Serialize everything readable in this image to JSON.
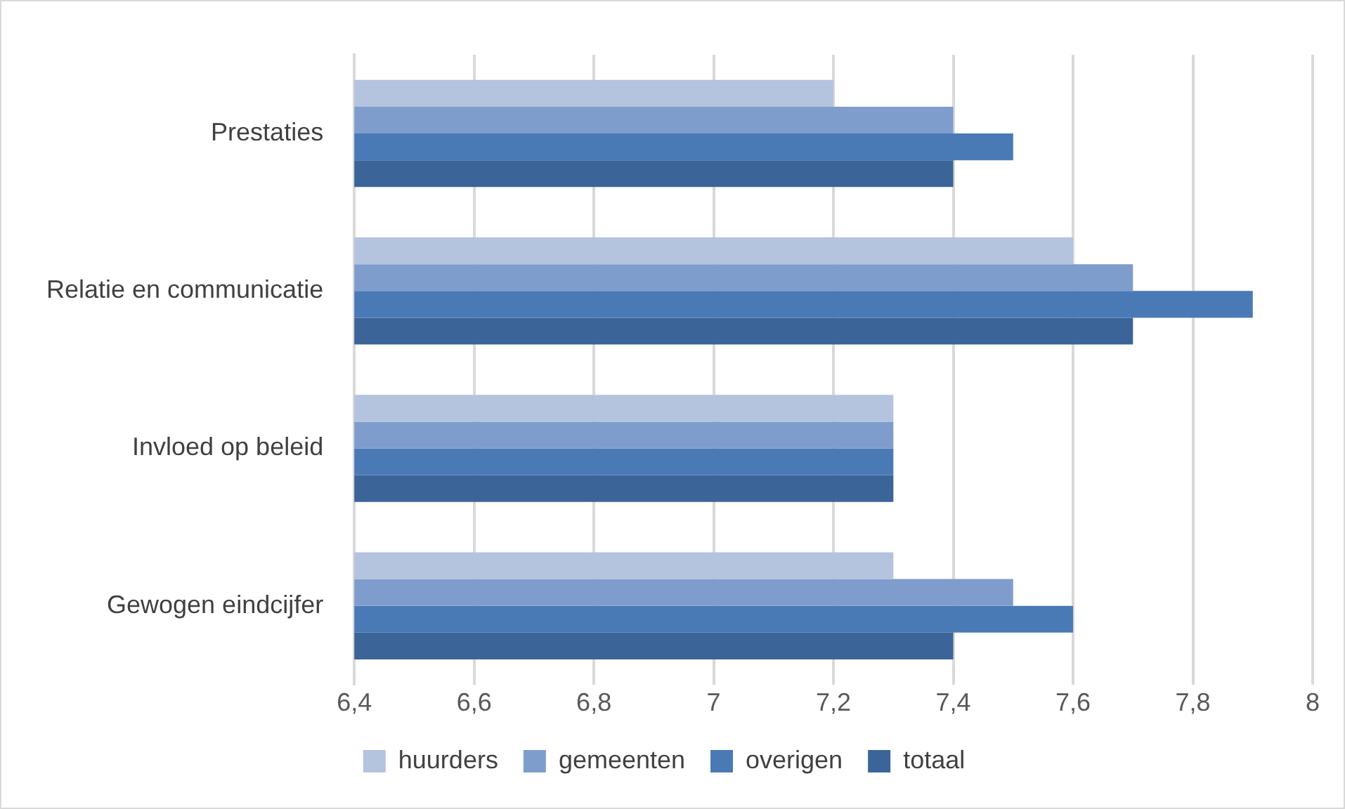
{
  "chart_data": {
    "type": "bar",
    "orientation": "horizontal",
    "categories": [
      "Prestaties",
      "Relatie en communicatie",
      "Invloed op beleid",
      "Gewogen eindcijfer"
    ],
    "series": [
      {
        "name": "huurders",
        "color": "#b4c3de",
        "values": [
          7.2,
          7.6,
          7.3,
          7.3
        ]
      },
      {
        "name": "gemeenten",
        "color": "#7f9dcc",
        "values": [
          7.4,
          7.7,
          7.3,
          7.5
        ]
      },
      {
        "name": "overigen",
        "color": "#4a7ab6",
        "values": [
          7.5,
          7.9,
          7.3,
          7.6
        ]
      },
      {
        "name": "totaal",
        "color": "#3b6498",
        "values": [
          7.4,
          7.7,
          7.3,
          7.4
        ]
      }
    ],
    "xlim": [
      6.4,
      8
    ],
    "xticks": [
      {
        "value": 6.4,
        "label": "6,4"
      },
      {
        "value": 6.6,
        "label": "6,6"
      },
      {
        "value": 6.8,
        "label": "6,8"
      },
      7,
      {
        "value": 7.2,
        "label": "7,2"
      },
      {
        "value": 7.4,
        "label": "7,4"
      },
      {
        "value": 7.6,
        "label": "7,6"
      },
      {
        "value": 7.8,
        "label": "7,8"
      },
      8
    ],
    "grid": "x",
    "legend": "bottom"
  }
}
